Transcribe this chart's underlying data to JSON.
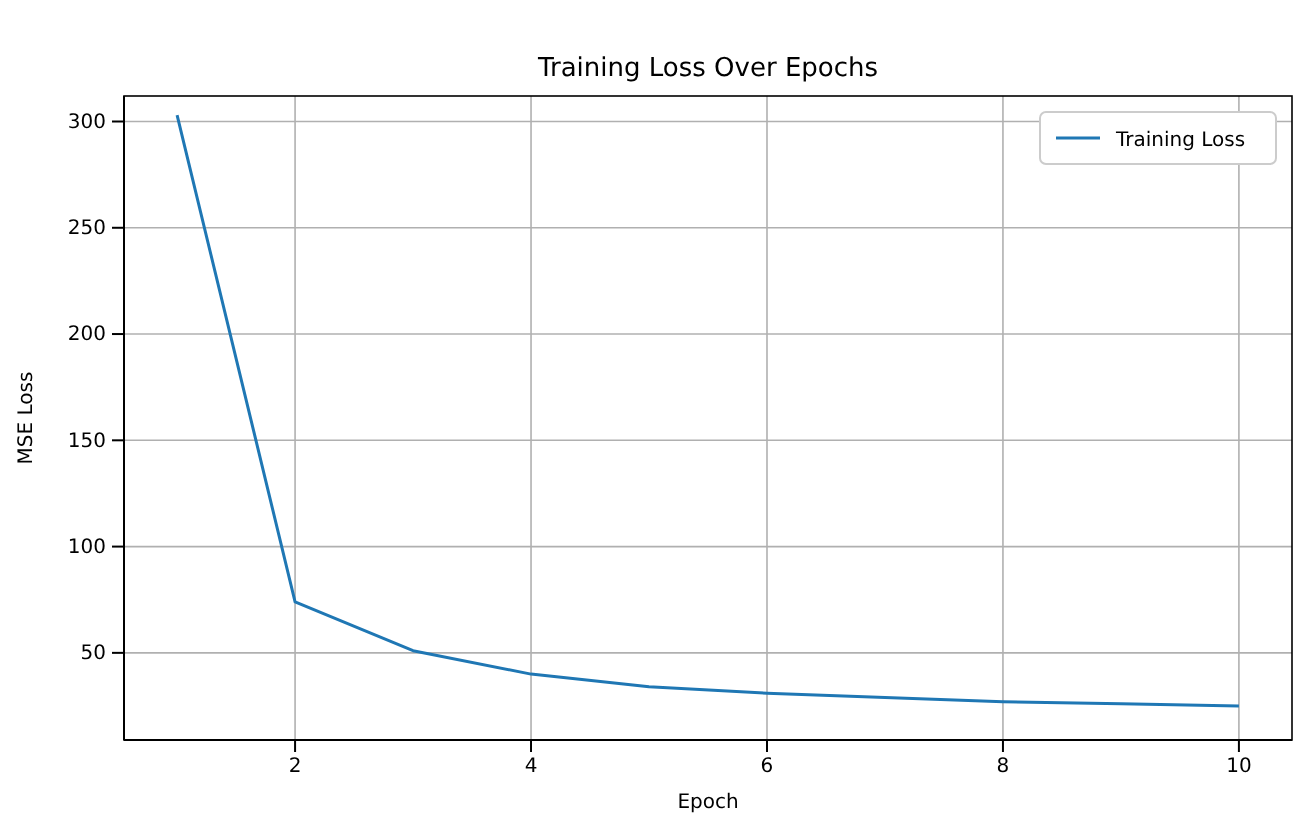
{
  "chart_data": {
    "type": "line",
    "title": "Training Loss Over Epochs",
    "xlabel": "Epoch",
    "ylabel": "MSE Loss",
    "x": [
      1,
      2,
      3,
      4,
      5,
      6,
      7,
      8,
      9,
      10
    ],
    "series": [
      {
        "name": "Training Loss",
        "color": "#1f77b4",
        "values": [
          303,
          74,
          51,
          40,
          34,
          31,
          29,
          27,
          26,
          25
        ]
      }
    ],
    "xlim": [
      0.55,
      10.45
    ],
    "ylim": [
      9,
      312
    ],
    "xticks": [
      2,
      4,
      6,
      8,
      10
    ],
    "yticks": [
      50,
      100,
      150,
      200,
      250,
      300
    ],
    "grid": true,
    "legend": "top right",
    "marker": "none",
    "line_style": "solid"
  }
}
